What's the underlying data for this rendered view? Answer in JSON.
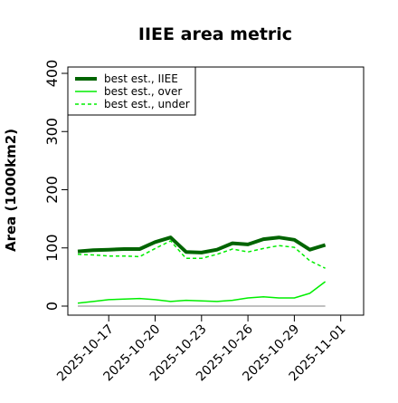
{
  "chart_data": {
    "type": "line",
    "title": "IIEE area metric",
    "xlabel": "",
    "ylabel": "Area (1000km2)",
    "ylim": [
      -10,
      410
    ],
    "yticks": [
      0,
      100,
      200,
      300,
      400
    ],
    "x": [
      "2025-10-15",
      "2025-10-16",
      "2025-10-17",
      "2025-10-18",
      "2025-10-19",
      "2025-10-20",
      "2025-10-21",
      "2025-10-22",
      "2025-10-23",
      "2025-10-24",
      "2025-10-25",
      "2025-10-26",
      "2025-10-27",
      "2025-10-28",
      "2025-10-29",
      "2025-10-30",
      "2025-10-31",
      "2025-11-01"
    ],
    "xticks": [
      "2025-10-17",
      "2025-10-20",
      "2025-10-23",
      "2025-10-26",
      "2025-10-29",
      "2025-11-01"
    ],
    "grid": false,
    "legend_position": "top-left",
    "series": [
      {
        "name": "best est., IIEE",
        "color": "#006400",
        "style": "solid-thick",
        "values": [
          94,
          96,
          97,
          98,
          98,
          110,
          118,
          93,
          92,
          97,
          108,
          106,
          115,
          118,
          114,
          97,
          105,
          null
        ]
      },
      {
        "name": "best est., over",
        "color": "#00ee00",
        "style": "solid",
        "values": [
          5,
          8,
          11,
          12,
          13,
          11,
          8,
          10,
          9,
          8,
          10,
          14,
          16,
          14,
          14,
          22,
          42,
          null
        ]
      },
      {
        "name": "best est., under",
        "color": "#00ee00",
        "style": "dashed",
        "values": [
          89,
          88,
          86,
          86,
          85,
          99,
          112,
          82,
          82,
          89,
          98,
          93,
          99,
          104,
          101,
          78,
          65,
          null
        ]
      },
      {
        "name": "",
        "color": "#808080",
        "style": "solid-thin",
        "values": [
          0,
          0,
          0,
          0,
          0,
          0,
          0,
          0,
          0,
          0,
          0,
          0,
          0,
          0,
          0,
          0,
          0,
          null
        ]
      }
    ]
  }
}
